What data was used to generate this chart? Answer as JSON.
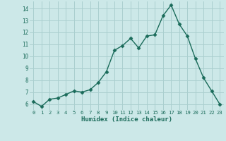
{
  "x": [
    0,
    1,
    2,
    3,
    4,
    5,
    6,
    7,
    8,
    9,
    10,
    11,
    12,
    13,
    14,
    15,
    16,
    17,
    18,
    19,
    20,
    21,
    22,
    23
  ],
  "y": [
    6.2,
    5.8,
    6.4,
    6.5,
    6.8,
    7.1,
    7.0,
    7.2,
    7.8,
    8.7,
    10.5,
    10.9,
    11.5,
    10.7,
    11.7,
    11.8,
    13.4,
    14.3,
    12.7,
    11.7,
    9.8,
    8.2,
    7.1,
    6.0
  ],
  "xlabel": "Humidex (Indice chaleur)",
  "line_color": "#1a6b5a",
  "marker": "D",
  "marker_size": 2.5,
  "bg_color": "#cce8e8",
  "grid_color": "#aacfcf",
  "ylim": [
    5.5,
    14.6
  ],
  "xlim": [
    -0.5,
    23.5
  ],
  "yticks": [
    6,
    7,
    8,
    9,
    10,
    11,
    12,
    13,
    14
  ],
  "xticks": [
    0,
    1,
    2,
    3,
    4,
    5,
    6,
    7,
    8,
    9,
    10,
    11,
    12,
    13,
    14,
    15,
    16,
    17,
    18,
    19,
    20,
    21,
    22,
    23
  ]
}
